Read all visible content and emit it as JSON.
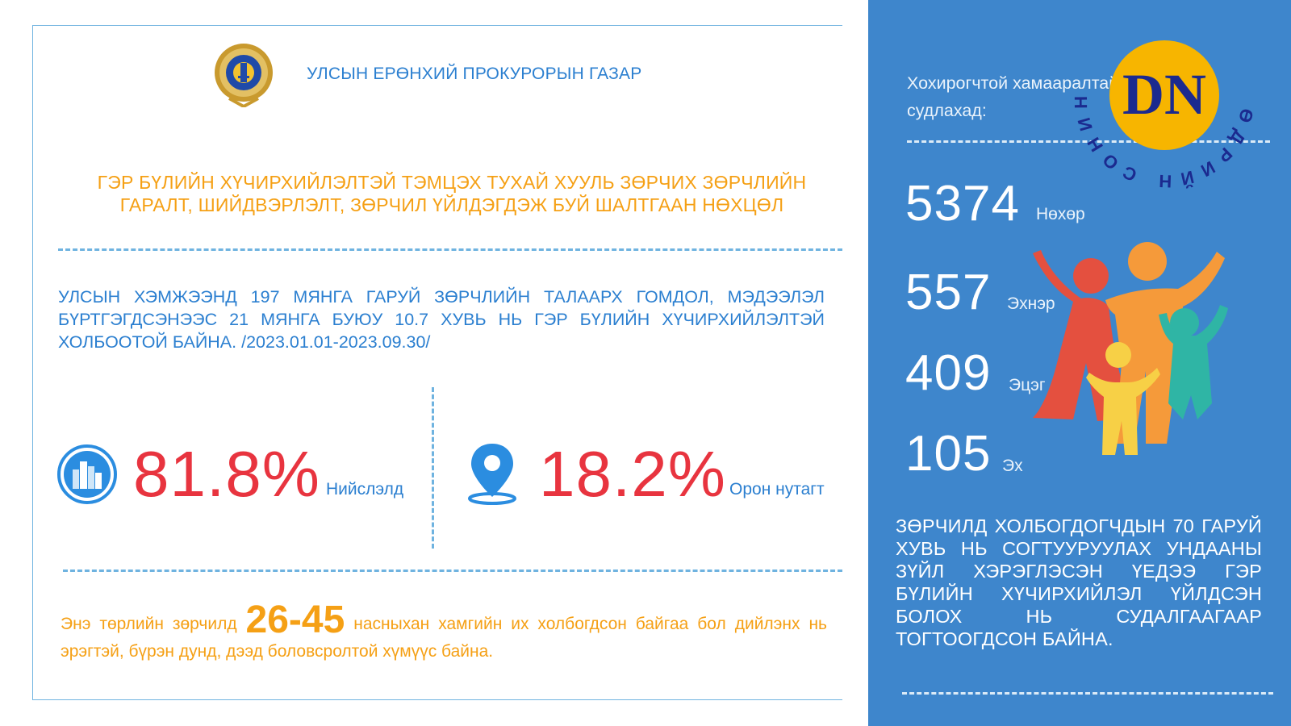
{
  "header": {
    "agency_name": "УЛСЫН ЕРӨНХИЙ ПРОКУРОРЫН ГАЗАР"
  },
  "headline": {
    "line1": "ГЭР БҮЛИЙН ХҮЧИРХИЙЛЭЛТЭЙ ТЭМЦЭХ ТУХАЙ ХУУЛЬ ЗӨРЧИХ ЗӨРЧЛИЙН",
    "line2": "ГАРАЛТ, ШИЙДВЭРЛЭЛТ, ЗӨРЧИЛ ҮЙЛДЭГДЭЖ БУЙ ШАЛТГААН НӨХЦӨЛ"
  },
  "national_stat": {
    "text": "УЛСЫН ХЭМЖЭЭНД 197 МЯНГА ГАРУЙ ЗӨРЧЛИЙН ТАЛААРХ ГОМДОЛ, МЭДЭЭЛЭЛ БҮРТГЭГДСЭНЭЭС 21 МЯНГА БУЮУ 10.7 ХУВЬ НЬ ГЭР БҮЛИЙН ХҮЧИРХИЙЛЭЛТЭЙ ХОЛБООТОЙ БАЙНА. /2023.01.01-2023.09.30/"
  },
  "location_split": {
    "capital": {
      "value": "81.8%",
      "label": "Нийслэлд",
      "icon": "city-buildings-icon"
    },
    "countryside": {
      "value": "18.2%",
      "label": "Орон нутагт",
      "icon": "map-pin-icon"
    }
  },
  "age_note": {
    "prefix": "Энэ төрлийн зөрчилд",
    "range": "26-45",
    "suffix": "насныхан хамгийн их холбогдсон байгаа бол дийлэнх нь эрэгтэй, бүрэн дунд, дээд боловсролтой хүмүүс байна."
  },
  "victims": {
    "heading": "Хохирогчтой хамааралтай байдлыг судлахад:",
    "items": [
      {
        "count": "5374",
        "label": "Нөхөр"
      },
      {
        "count": "557",
        "label": "Эхнэр"
      },
      {
        "count": "409",
        "label": "Эцэг"
      },
      {
        "count": "105",
        "label": "Эх"
      }
    ]
  },
  "alcohol_note": {
    "text": "ЗӨРЧИЛД ХОЛБОГДОГЧДЫН 70 ГАРУЙ ХУВЬ НЬ СОГТУУРУУЛАХ УНДААНЫ ЗҮЙЛ ХЭРЭГЛЭСЭН ҮЕДЭЭ ГЭР БҮЛИЙН ХҮЧИРХИЙЛЭЛ ҮЙЛДСЭН БОЛОХ НЬ СУДАЛГААГААР ТОГТООГДСОН БАЙНА."
  },
  "watermark": {
    "logo_letters": "DN",
    "ring_text": "ӨДРИЙН СОНИН DAILY NEWS"
  },
  "colors": {
    "blue_text": "#2b7fd0",
    "orange_text": "#f5a015",
    "red_value": "#e8343f",
    "panel_blue": "#3e86cc",
    "logo_yellow": "#f7b500",
    "logo_navy": "#1b2a8f"
  }
}
